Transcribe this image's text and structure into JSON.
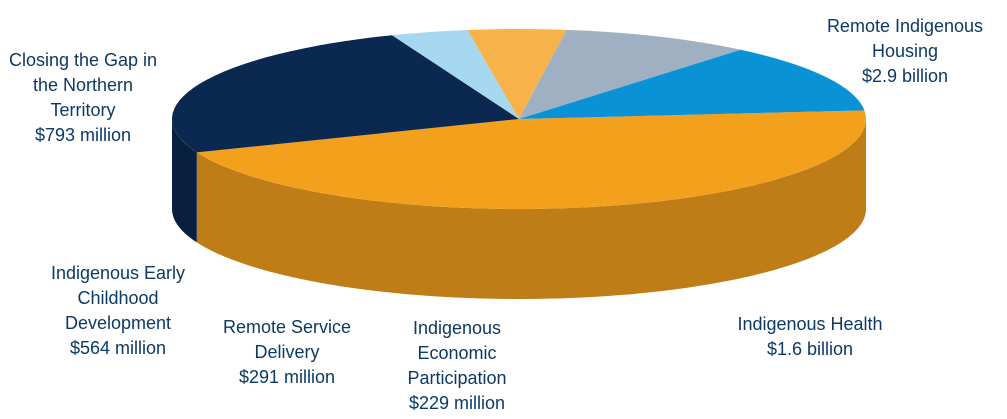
{
  "chart_data": {
    "type": "pie",
    "title": "",
    "slices": [
      {
        "label_lines": [
          "Remote Indigenous",
          "Housing",
          "$2.9 billion"
        ],
        "value": 2.9,
        "unit": "billion",
        "color": "#f3a01c"
      },
      {
        "label_lines": [
          "Indigenous Health",
          "$1.6 billion"
        ],
        "value": 1.6,
        "unit": "billion",
        "color": "#0a2850"
      },
      {
        "label_lines": [
          "Indigenous",
          "Economic",
          "Participation",
          "$229 million"
        ],
        "value": 0.229,
        "unit": "billion",
        "color": "#a6d8f0"
      },
      {
        "label_lines": [
          "Remote Service",
          "Delivery",
          "$291 million"
        ],
        "value": 0.291,
        "unit": "billion",
        "color": "#f7b24a"
      },
      {
        "label_lines": [
          "Indigenous Early",
          "Childhood",
          "Development",
          "$564 million"
        ],
        "value": 0.564,
        "unit": "billion",
        "color": "#9fb0c2"
      },
      {
        "label_lines": [
          "Closing the Gap in",
          "the Northern",
          "Territory",
          "$793 million"
        ],
        "value": 0.793,
        "unit": "billion",
        "color": "#0993d6"
      }
    ],
    "legend": "none"
  }
}
